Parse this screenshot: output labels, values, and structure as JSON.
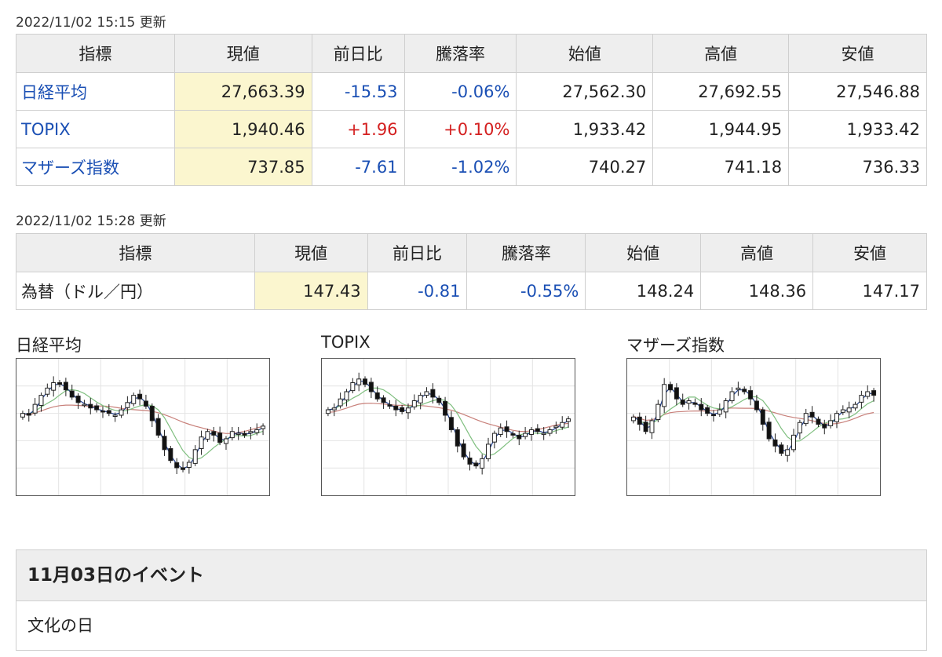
{
  "stock_table": {
    "timestamp": "2022/11/02 15:15 更新",
    "headers": [
      "指標",
      "現値",
      "前日比",
      "騰落率",
      "始値",
      "高値",
      "安値"
    ],
    "rows": [
      {
        "name": "日経平均",
        "current": "27,663.39",
        "change": "-15.53",
        "rate": "-0.06%",
        "open": "27,562.30",
        "high": "27,692.55",
        "low": "27,546.88",
        "direction": "down"
      },
      {
        "name": "TOPIX",
        "current": "1,940.46",
        "change": "+1.96",
        "rate": "+0.10%",
        "open": "1,933.42",
        "high": "1,944.95",
        "low": "1,933.42",
        "direction": "up"
      },
      {
        "name": "マザーズ指数",
        "current": "737.85",
        "change": "-7.61",
        "rate": "-1.02%",
        "open": "740.27",
        "high": "741.18",
        "low": "736.33",
        "direction": "down"
      }
    ]
  },
  "fx_table": {
    "timestamp": "2022/11/02 15:28 更新",
    "headers": [
      "指標",
      "現値",
      "前日比",
      "騰落率",
      "始値",
      "高値",
      "安値"
    ],
    "row": {
      "name": "為替（ドル／円）",
      "current": "147.43",
      "change": "-0.81",
      "rate": "-0.55%",
      "open": "148.24",
      "high": "148.36",
      "low": "147.17",
      "direction": "down"
    }
  },
  "charts": [
    {
      "title": "日経平均",
      "closes": [
        50,
        49,
        55,
        60,
        64,
        67,
        66,
        63,
        59,
        56,
        55,
        53,
        52,
        51,
        50,
        49,
        52,
        56,
        60,
        58,
        54,
        46,
        38,
        30,
        24,
        20,
        19,
        23,
        30,
        37,
        40,
        38,
        34,
        36,
        40,
        39,
        38,
        40,
        41,
        43
      ]
    },
    {
      "title": "TOPIX",
      "closes": [
        52,
        53,
        58,
        62,
        67,
        69,
        66,
        62,
        58,
        56,
        54,
        52,
        51,
        53,
        57,
        60,
        62,
        59,
        56,
        49,
        41,
        32,
        26,
        22,
        21,
        25,
        33,
        39,
        42,
        40,
        38,
        36,
        39,
        41,
        40,
        39,
        41,
        43,
        45,
        47
      ]
    },
    {
      "title": "マザーズ指数",
      "closes": [
        48,
        44,
        40,
        46,
        55,
        66,
        63,
        58,
        55,
        57,
        55,
        52,
        50,
        49,
        52,
        57,
        62,
        64,
        62,
        58,
        52,
        44,
        36,
        32,
        28,
        30,
        38,
        45,
        50,
        48,
        44,
        42,
        46,
        50,
        52,
        53,
        55,
        60,
        62,
        60
      ]
    }
  ],
  "colors": {
    "up": "#d42020",
    "down": "#1a4fb4",
    "highlight": "#fbf6cf",
    "ma5": "#1f3f8f",
    "ma25": "#7fbf7f",
    "ma75": "#c8807a"
  },
  "event": {
    "title": "11月03日のイベント",
    "body": "文化の日"
  }
}
